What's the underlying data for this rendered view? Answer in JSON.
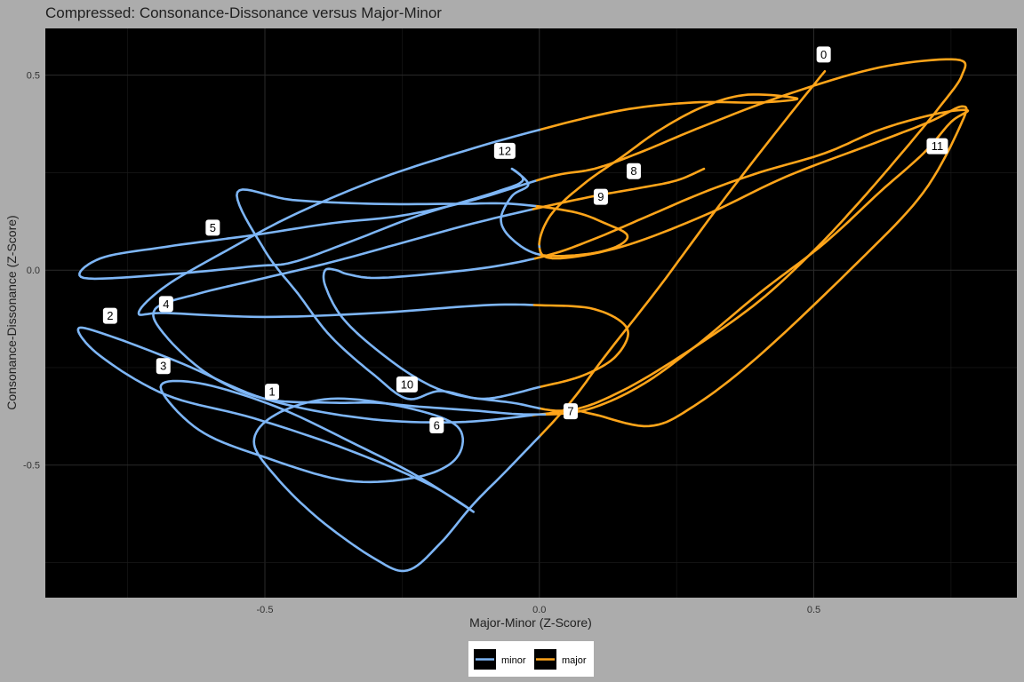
{
  "chart_data": {
    "type": "line",
    "title": "Compressed: Consonance-Dissonance versus Major-Minor",
    "xlabel": "Major-Minor (Z-Score)",
    "ylabel": "Consonance-Dissonance (Z-Score)",
    "xlim": [
      -0.9,
      0.87
    ],
    "ylim": [
      -0.84,
      0.62
    ],
    "x_ticks": [
      -0.5,
      0.0,
      0.5
    ],
    "y_ticks": [
      -0.5,
      0.0,
      0.5
    ],
    "x_tick_labels": [
      "-0.5",
      "0.0",
      "0.5"
    ],
    "y_tick_labels": [
      "-0.5",
      "0.0",
      "0.5"
    ],
    "grid": true,
    "legend_position": "bottom",
    "series": [
      {
        "name": "minor",
        "color": "#7eb6f6"
      },
      {
        "name": "major",
        "color": "#ffa51a"
      }
    ],
    "trajectory": [
      [
        0.52,
        0.51
      ],
      [
        0.44,
        0.37
      ],
      [
        0.33,
        0.17
      ],
      [
        0.22,
        -0.04
      ],
      [
        0.12,
        -0.22
      ],
      [
        0.05,
        -0.35
      ],
      [
        -0.05,
        -0.5
      ],
      [
        -0.12,
        -0.6
      ],
      [
        -0.18,
        -0.7
      ],
      [
        -0.24,
        -0.77
      ],
      [
        -0.3,
        -0.74
      ],
      [
        -0.4,
        -0.64
      ],
      [
        -0.48,
        -0.53
      ],
      [
        -0.52,
        -0.44
      ],
      [
        -0.48,
        -0.37
      ],
      [
        -0.38,
        -0.33
      ],
      [
        -0.25,
        -0.35
      ],
      [
        -0.15,
        -0.4
      ],
      [
        -0.15,
        -0.48
      ],
      [
        -0.22,
        -0.53
      ],
      [
        -0.35,
        -0.54
      ],
      [
        -0.5,
        -0.48
      ],
      [
        -0.62,
        -0.41
      ],
      [
        -0.69,
        -0.3
      ],
      [
        -0.62,
        -0.29
      ],
      [
        -0.48,
        -0.35
      ],
      [
        -0.33,
        -0.45
      ],
      [
        -0.22,
        -0.53
      ],
      [
        -0.12,
        -0.62
      ],
      [
        -0.2,
        -0.55
      ],
      [
        -0.35,
        -0.46
      ],
      [
        -0.52,
        -0.38
      ],
      [
        -0.68,
        -0.32
      ],
      [
        -0.8,
        -0.22
      ],
      [
        -0.84,
        -0.15
      ],
      [
        -0.78,
        -0.17
      ],
      [
        -0.65,
        -0.24
      ],
      [
        -0.5,
        -0.33
      ],
      [
        -0.32,
        -0.38
      ],
      [
        -0.15,
        -0.39
      ],
      [
        0.0,
        -0.37
      ],
      [
        0.06,
        -0.36
      ],
      [
        0.1,
        -0.37
      ],
      [
        0.2,
        -0.4
      ],
      [
        0.28,
        -0.35
      ],
      [
        0.4,
        -0.22
      ],
      [
        0.58,
        0.02
      ],
      [
        0.7,
        0.2
      ],
      [
        0.77,
        0.38
      ],
      [
        0.77,
        0.42
      ],
      [
        0.71,
        0.38
      ],
      [
        0.6,
        0.32
      ],
      [
        0.45,
        0.24
      ],
      [
        0.3,
        0.14
      ],
      [
        0.15,
        0.06
      ],
      [
        0.03,
        0.03
      ],
      [
        0.0,
        0.06
      ],
      [
        0.02,
        0.14
      ],
      [
        0.08,
        0.22
      ],
      [
        0.15,
        0.29
      ],
      [
        0.22,
        0.36
      ],
      [
        0.3,
        0.42
      ],
      [
        0.38,
        0.45
      ],
      [
        0.47,
        0.44
      ],
      [
        0.4,
        0.43
      ],
      [
        0.28,
        0.43
      ],
      [
        0.15,
        0.41
      ],
      [
        0.0,
        0.36
      ],
      [
        -0.15,
        0.3
      ],
      [
        -0.3,
        0.23
      ],
      [
        -0.45,
        0.14
      ],
      [
        -0.57,
        0.05
      ],
      [
        -0.68,
        -0.04
      ],
      [
        -0.73,
        -0.11
      ],
      [
        -0.68,
        -0.11
      ],
      [
        -0.5,
        -0.12
      ],
      [
        -0.3,
        -0.11
      ],
      [
        -0.1,
        -0.09
      ],
      [
        0.0,
        -0.09
      ],
      [
        0.1,
        -0.1
      ],
      [
        0.16,
        -0.15
      ],
      [
        0.14,
        -0.22
      ],
      [
        0.08,
        -0.27
      ],
      [
        0.0,
        -0.3
      ],
      [
        -0.1,
        -0.33
      ],
      [
        -0.18,
        -0.31
      ],
      [
        -0.24,
        -0.33
      ],
      [
        -0.3,
        -0.27
      ],
      [
        -0.38,
        -0.17
      ],
      [
        -0.44,
        -0.06
      ],
      [
        -0.5,
        0.05
      ],
      [
        -0.55,
        0.2
      ],
      [
        -0.45,
        0.18
      ],
      [
        -0.3,
        0.17
      ],
      [
        -0.15,
        0.17
      ],
      [
        -0.05,
        0.17
      ],
      [
        0.06,
        0.15
      ],
      [
        0.12,
        0.12
      ],
      [
        0.16,
        0.09
      ],
      [
        0.14,
        0.06
      ],
      [
        0.08,
        0.04
      ],
      [
        0.0,
        0.04
      ],
      [
        -0.05,
        0.08
      ],
      [
        -0.07,
        0.13
      ],
      [
        -0.05,
        0.19
      ],
      [
        -0.02,
        0.22
      ],
      [
        -0.05,
        0.26
      ],
      [
        -0.03,
        0.23
      ],
      [
        -0.08,
        0.2
      ],
      [
        -0.22,
        0.14
      ],
      [
        -0.35,
        0.07
      ],
      [
        -0.45,
        0.02
      ],
      [
        -0.52,
        0.01
      ],
      [
        -0.67,
        -0.01
      ],
      [
        -0.83,
        -0.02
      ],
      [
        -0.8,
        0.03
      ],
      [
        -0.68,
        0.06
      ],
      [
        -0.52,
        0.09
      ],
      [
        -0.38,
        0.12
      ],
      [
        -0.25,
        0.14
      ],
      [
        -0.12,
        0.18
      ],
      [
        0.02,
        0.24
      ],
      [
        0.1,
        0.26
      ],
      [
        0.18,
        0.3
      ],
      [
        0.3,
        0.37
      ],
      [
        0.45,
        0.45
      ],
      [
        0.62,
        0.52
      ],
      [
        0.76,
        0.54
      ],
      [
        0.77,
        0.5
      ],
      [
        0.73,
        0.42
      ],
      [
        0.66,
        0.3
      ],
      [
        0.58,
        0.17
      ],
      [
        0.5,
        0.05
      ],
      [
        0.4,
        -0.08
      ],
      [
        0.28,
        -0.2
      ],
      [
        0.15,
        -0.31
      ],
      [
        0.05,
        -0.36
      ],
      [
        -0.05,
        -0.34
      ],
      [
        -0.15,
        -0.32
      ],
      [
        -0.22,
        -0.28
      ],
      [
        -0.3,
        -0.2
      ],
      [
        -0.36,
        -0.12
      ],
      [
        -0.39,
        -0.04
      ],
      [
        -0.39,
        0.0
      ],
      [
        -0.37,
        0.0
      ],
      [
        -0.35,
        -0.01
      ],
      [
        -0.3,
        -0.02
      ],
      [
        -0.2,
        -0.01
      ],
      [
        -0.08,
        0.01
      ],
      [
        0.02,
        0.04
      ],
      [
        0.1,
        0.08
      ],
      [
        0.2,
        0.14
      ],
      [
        0.3,
        0.2
      ],
      [
        0.4,
        0.25
      ],
      [
        0.52,
        0.3
      ],
      [
        0.62,
        0.36
      ],
      [
        0.72,
        0.4
      ],
      [
        0.78,
        0.41
      ],
      [
        0.75,
        0.38
      ],
      [
        0.7,
        0.3
      ],
      [
        0.62,
        0.2
      ],
      [
        0.52,
        0.07
      ],
      [
        0.4,
        -0.06
      ],
      [
        0.28,
        -0.2
      ],
      [
        0.18,
        -0.3
      ],
      [
        0.08,
        -0.36
      ],
      [
        -0.02,
        -0.37
      ],
      [
        -0.12,
        -0.36
      ],
      [
        -0.22,
        -0.35
      ],
      [
        -0.3,
        -0.34
      ],
      [
        -0.38,
        -0.34
      ],
      [
        -0.5,
        -0.33
      ],
      [
        -0.6,
        -0.27
      ],
      [
        -0.68,
        -0.17
      ],
      [
        -0.7,
        -0.1
      ],
      [
        -0.62,
        -0.06
      ],
      [
        -0.5,
        -0.02
      ],
      [
        -0.38,
        0.02
      ],
      [
        -0.25,
        0.07
      ],
      [
        -0.12,
        0.12
      ],
      [
        0.0,
        0.16
      ],
      [
        0.1,
        0.19
      ],
      [
        0.18,
        0.21
      ],
      [
        0.25,
        0.23
      ],
      [
        0.3,
        0.26
      ]
    ],
    "point_labels": [
      {
        "text": "0",
        "x": 0.518,
        "y": 0.553
      },
      {
        "text": "1",
        "x": -0.487,
        "y": -0.312
      },
      {
        "text": "2",
        "x": -0.782,
        "y": -0.117
      },
      {
        "text": "3",
        "x": -0.685,
        "y": -0.246
      },
      {
        "text": "4",
        "x": -0.68,
        "y": -0.087
      },
      {
        "text": "5",
        "x": -0.595,
        "y": 0.109
      },
      {
        "text": "6",
        "x": -0.187,
        "y": -0.398
      },
      {
        "text": "7",
        "x": 0.057,
        "y": -0.362
      },
      {
        "text": "8",
        "x": 0.172,
        "y": 0.254
      },
      {
        "text": "9",
        "x": 0.112,
        "y": 0.188
      },
      {
        "text": "10",
        "x": -0.241,
        "y": -0.293
      },
      {
        "text": "11",
        "x": 0.725,
        "y": 0.318
      },
      {
        "text": "12",
        "x": -0.063,
        "y": 0.306
      }
    ]
  }
}
